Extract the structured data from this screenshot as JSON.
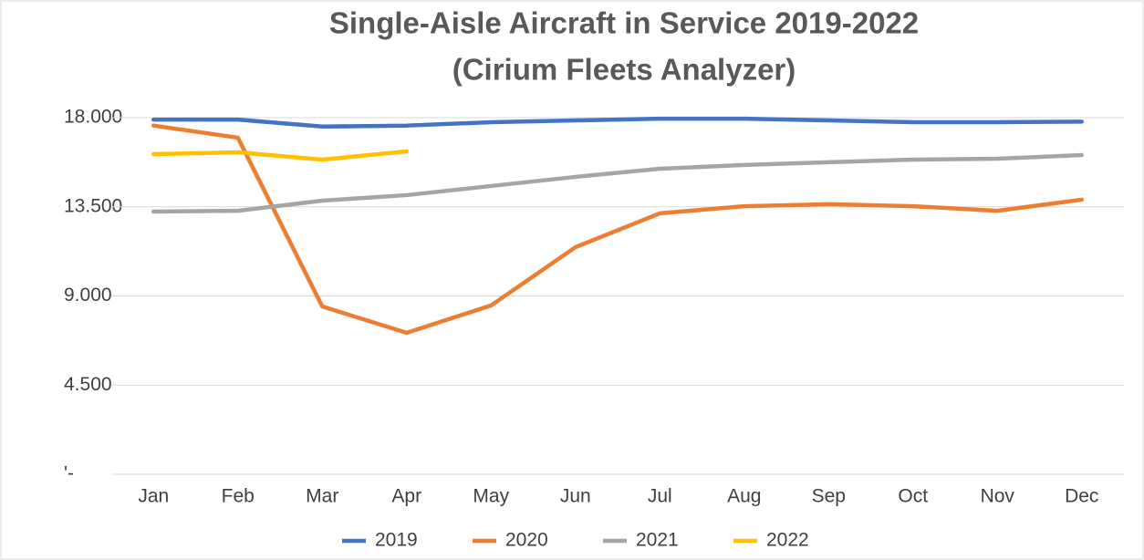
{
  "chart_data": {
    "type": "line",
    "title": "Single-Aisle Aircraft in Service 2019-2022",
    "subtitle": "(Cirium Fleets Analyzer)",
    "categories": [
      "Jan",
      "Feb",
      "Mar",
      "Apr",
      "May",
      "Jun",
      "Jul",
      "Aug",
      "Sep",
      "Oct",
      "Nov",
      "Dec"
    ],
    "series": [
      {
        "name": "2019",
        "color": "#4472c4",
        "values": [
          17900,
          17900,
          17550,
          17600,
          17770,
          17860,
          17950,
          17950,
          17860,
          17770,
          17770,
          17800
        ]
      },
      {
        "name": "2020",
        "color": "#ed7d31",
        "values": [
          17600,
          16990,
          8470,
          7140,
          8520,
          11460,
          13170,
          13530,
          13630,
          13530,
          13300,
          13860
        ]
      },
      {
        "name": "2021",
        "color": "#a5a5a5",
        "values": [
          13260,
          13300,
          13810,
          14090,
          14550,
          15010,
          15420,
          15610,
          15750,
          15880,
          15930,
          16110
        ]
      },
      {
        "name": "2022",
        "color": "#ffc000",
        "values": [
          16160,
          16250,
          15880,
          16300,
          null,
          null,
          null,
          null,
          null,
          null,
          null,
          null
        ]
      }
    ],
    "ylim": [
      0,
      18000
    ],
    "yticks": [
      {
        "value": 0,
        "label": "'-"
      },
      {
        "value": 4500,
        "label": "4.500"
      },
      {
        "value": 9000,
        "label": "9.000"
      },
      {
        "value": 13500,
        "label": "13.500"
      },
      {
        "value": 18000,
        "label": "18.000"
      }
    ],
    "grid": true,
    "legend": "bottom"
  }
}
